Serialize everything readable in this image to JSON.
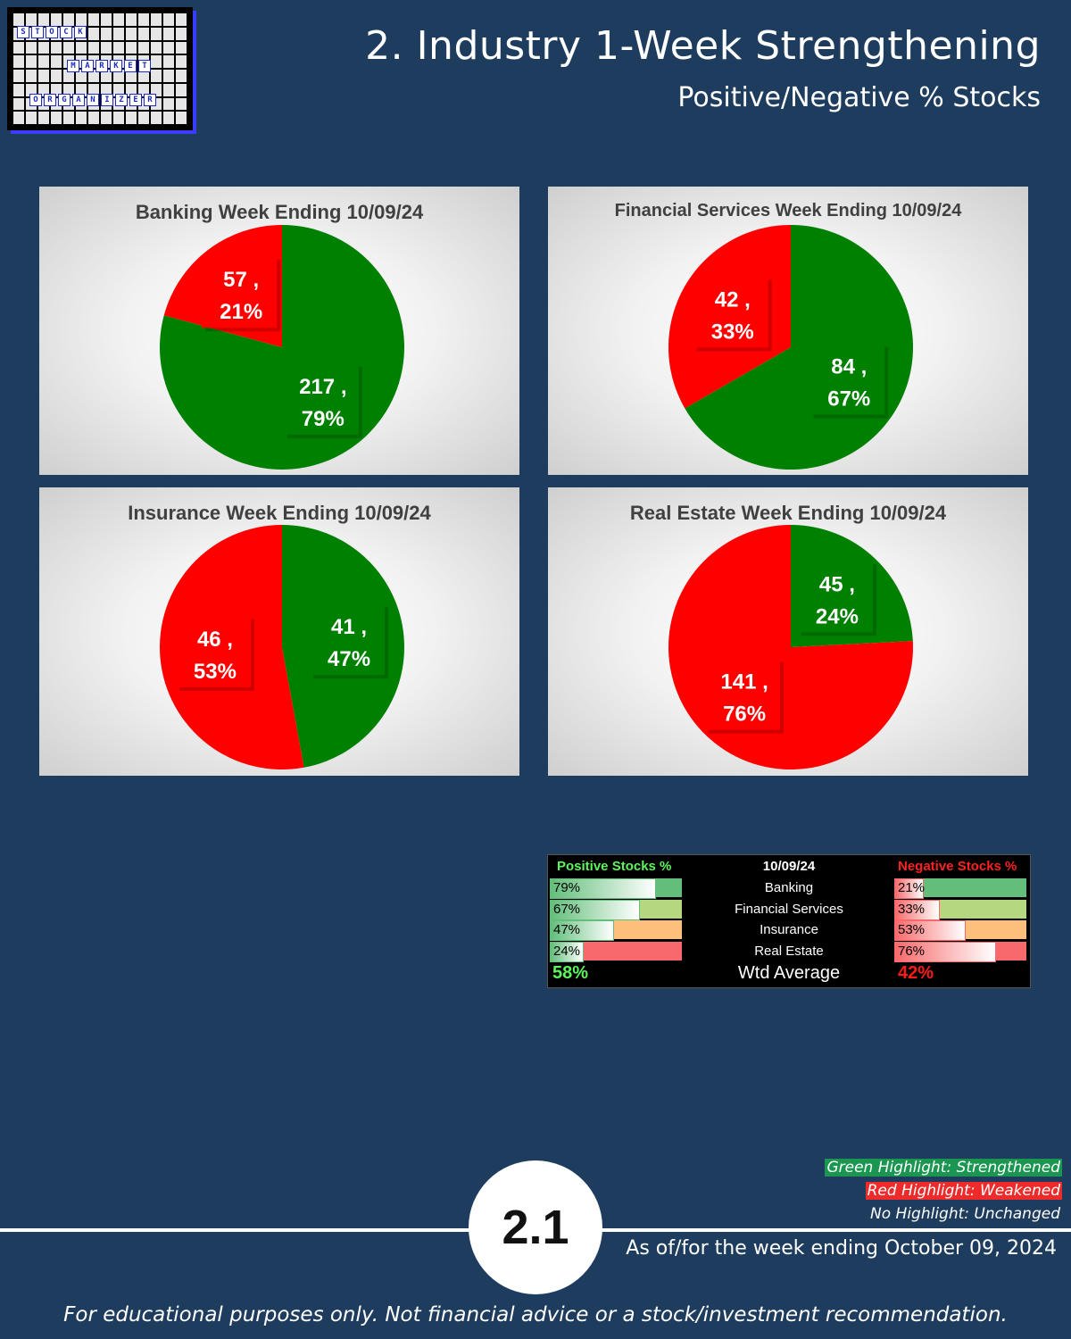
{
  "header": {
    "logo_words": [
      "STOCK",
      "MARKET",
      "ORGANIZER"
    ],
    "title": "2. Industry 1-Week Strengthening",
    "subtitle": "Positive/Negative % Stocks"
  },
  "colors": {
    "positive": "#008000",
    "negative": "#ff0000",
    "background": "#1e3d5e"
  },
  "chart_data": [
    {
      "type": "pie",
      "title": "Banking Week Ending 10/09/24",
      "slices": [
        {
          "name": "Positive",
          "value": 217,
          "percent": 79,
          "label": "217 ,",
          "pct_label": "79%",
          "color": "#008000"
        },
        {
          "name": "Negative",
          "value": 57,
          "percent": 21,
          "label": "57 ,",
          "pct_label": "21%",
          "color": "#ff0000"
        }
      ]
    },
    {
      "type": "pie",
      "title": "Financial Services Week Ending 10/09/24",
      "slices": [
        {
          "name": "Positive",
          "value": 84,
          "percent": 67,
          "label": "84 ,",
          "pct_label": "67%",
          "color": "#008000"
        },
        {
          "name": "Negative",
          "value": 42,
          "percent": 33,
          "label": "42 ,",
          "pct_label": "33%",
          "color": "#ff0000"
        }
      ]
    },
    {
      "type": "pie",
      "title": "Insurance Week Ending 10/09/24",
      "slices": [
        {
          "name": "Positive",
          "value": 41,
          "percent": 47,
          "label": "41 ,",
          "pct_label": "47%",
          "color": "#008000"
        },
        {
          "name": "Negative",
          "value": 46,
          "percent": 53,
          "label": "46 ,",
          "pct_label": "53%",
          "color": "#ff0000"
        }
      ]
    },
    {
      "type": "pie",
      "title": "Real Estate Week Ending 10/09/24",
      "slices": [
        {
          "name": "Positive",
          "value": 45,
          "percent": 24,
          "label": "45 ,",
          "pct_label": "24%",
          "color": "#008000"
        },
        {
          "name": "Negative",
          "value": 141,
          "percent": 76,
          "label": "141 ,",
          "pct_label": "76%",
          "color": "#ff0000"
        }
      ]
    },
    {
      "type": "table",
      "date": "10/09/24",
      "positive_header": "Positive Stocks %",
      "negative_header": "Negative Stocks %",
      "rows": [
        {
          "industry": "Banking",
          "positive": "79%",
          "negative": "21%",
          "pos_value": 79,
          "neg_value": 21,
          "row_bg": "#63be7b"
        },
        {
          "industry": "Financial Services",
          "positive": "67%",
          "negative": "33%",
          "pos_value": 67,
          "neg_value": 33,
          "row_bg": "#b5d77f"
        },
        {
          "industry": "Insurance",
          "positive": "47%",
          "negative": "53%",
          "pos_value": 47,
          "neg_value": 53,
          "row_bg": "#fdbf7b"
        },
        {
          "industry": "Real Estate",
          "positive": "24%",
          "negative": "76%",
          "pos_value": 24,
          "neg_value": 76,
          "row_bg": "#f8696b"
        }
      ],
      "avg_label": "Wtd Average",
      "avg_positive": "58%",
      "avg_negative": "42%"
    }
  ],
  "legend": {
    "green": "Green Highlight: Strengthened",
    "red": "Red Highlight: Weakened",
    "none": "No Highlight: Unchanged"
  },
  "footer": {
    "page_number": "2.1",
    "as_of": "As of/for the week ending October 09, 2024",
    "disclaimer": "For educational purposes only. Not financial advice or a stock/investment recommendation."
  }
}
